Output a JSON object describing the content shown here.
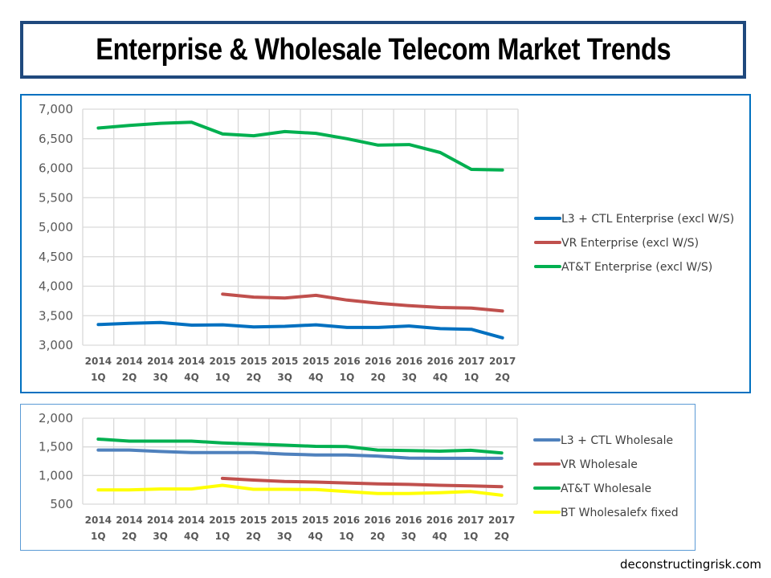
{
  "title": "Enterprise & Wholesale Telecom Market Trends",
  "watermark": "deconstructingrisk.com",
  "chart_data": [
    {
      "type": "line",
      "name": "enterprise",
      "title": "",
      "xlabel": "",
      "ylabel": "",
      "categories": [
        "2014 1Q",
        "2014 2Q",
        "2014 3Q",
        "2014 4Q",
        "2015 1Q",
        "2015 2Q",
        "2015 3Q",
        "2015 4Q",
        "2016 1Q",
        "2016 2Q",
        "2016 3Q",
        "2016 4Q",
        "2017 1Q",
        "2017 2Q"
      ],
      "ylim": [
        3000,
        7000
      ],
      "yticks": [
        3000,
        3500,
        4000,
        4500,
        5000,
        5500,
        6000,
        6500,
        7000
      ],
      "ytick_labels": [
        "3,000",
        "3,500",
        "4,000",
        "4,500",
        "5,000",
        "5,500",
        "6,000",
        "6,500",
        "7,000"
      ],
      "grid": true,
      "legend_position": "right",
      "series": [
        {
          "name": "L3 + CTL Enterprise (excl W/S)",
          "color": "#0070C0",
          "values": [
            3350,
            3370,
            3385,
            3340,
            3345,
            3310,
            3320,
            3345,
            3300,
            3300,
            3325,
            3280,
            3270,
            3125
          ]
        },
        {
          "name": "VR Enterprise (excl W/S)",
          "color": "#C0504D",
          "values": [
            null,
            null,
            null,
            null,
            3865,
            3815,
            3800,
            3845,
            3765,
            3710,
            3670,
            3640,
            3630,
            3580
          ]
        },
        {
          "name": "AT&T Enterprise (excl W/S)",
          "color": "#00B050",
          "values": [
            6680,
            6725,
            6760,
            6780,
            6580,
            6550,
            6620,
            6590,
            6500,
            6390,
            6400,
            6265,
            5980,
            5970
          ]
        }
      ]
    },
    {
      "type": "line",
      "name": "wholesale",
      "title": "",
      "xlabel": "",
      "ylabel": "",
      "categories": [
        "2014 1Q",
        "2014 2Q",
        "2014 3Q",
        "2014 4Q",
        "2015 1Q",
        "2015 2Q",
        "2015 3Q",
        "2015 4Q",
        "2016 1Q",
        "2016 2Q",
        "2016 3Q",
        "2016 4Q",
        "2017 1Q",
        "2017 2Q"
      ],
      "ylim": [
        500,
        2000
      ],
      "yticks": [
        500,
        1000,
        1500,
        2000
      ],
      "ytick_labels": [
        "500",
        "1,000",
        "1,500",
        "2,000"
      ],
      "grid": true,
      "legend_position": "right",
      "series": [
        {
          "name": "L3 + CTL Wholesale",
          "color": "#4F81BD",
          "values": [
            1445,
            1445,
            1420,
            1400,
            1400,
            1400,
            1375,
            1360,
            1360,
            1340,
            1305,
            1300,
            1300,
            1300
          ]
        },
        {
          "name": "VR Wholesale",
          "color": "#C0504D",
          "values": [
            null,
            null,
            null,
            null,
            950,
            920,
            895,
            885,
            870,
            855,
            845,
            830,
            820,
            805
          ]
        },
        {
          "name": "AT&T Wholesale",
          "color": "#00B050",
          "values": [
            1635,
            1600,
            1600,
            1600,
            1570,
            1550,
            1530,
            1510,
            1505,
            1445,
            1435,
            1425,
            1440,
            1395
          ]
        },
        {
          "name": "BT Wholesalefx fixed",
          "color": "#FFFF00",
          "values": [
            750,
            750,
            765,
            765,
            830,
            760,
            760,
            755,
            720,
            685,
            685,
            700,
            720,
            655
          ]
        }
      ]
    }
  ]
}
